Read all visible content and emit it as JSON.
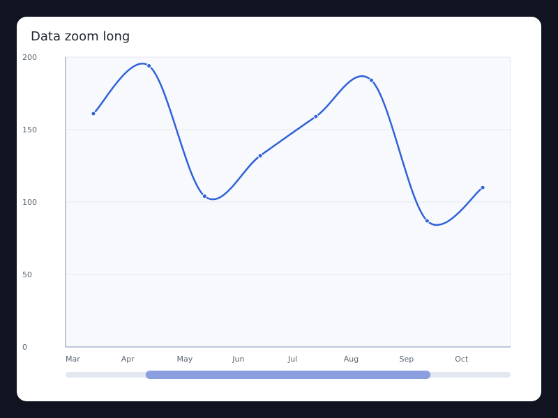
{
  "colors": {
    "background": "#0f1420",
    "card": "#ffffff",
    "plot_bg": "#f7f9fc",
    "grid": "#e3e8f0",
    "axis": "#a7b5cc",
    "line": "#2f62d8",
    "slider_track": "#e3e8f0",
    "slider_handle": "#8a9ee0"
  },
  "chart_data": {
    "type": "line",
    "title": "Data zoom long",
    "xlabel": "",
    "ylabel": "",
    "categories": [
      "Mar",
      "Apr",
      "May",
      "Jun",
      "Jul",
      "Aug",
      "Sep",
      "Oct"
    ],
    "ylim": [
      0,
      200
    ],
    "yticks": [
      0,
      50,
      100,
      150,
      200
    ],
    "series": [
      {
        "values": [
          161,
          194,
          104,
          132,
          159,
          184,
          87,
          110
        ]
      }
    ],
    "smooth": true,
    "grid": true,
    "legend": "none",
    "data_zoom": {
      "start": 0.18,
      "end": 0.82
    }
  }
}
